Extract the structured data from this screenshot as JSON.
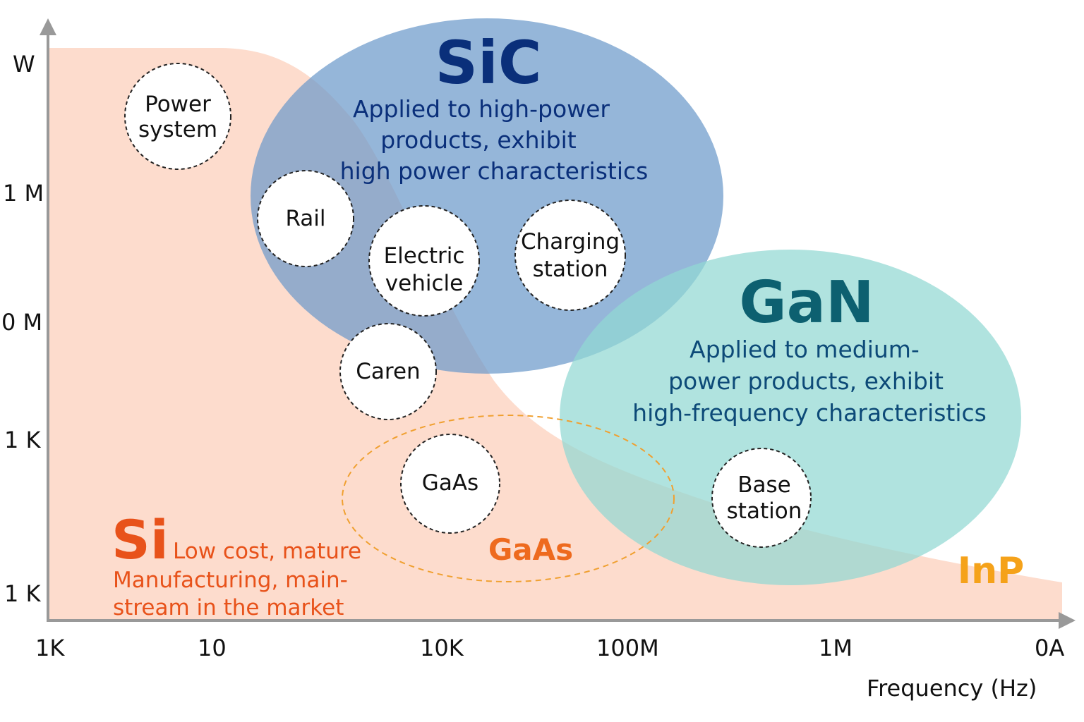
{
  "y_axis": {
    "ticks": [
      "W",
      "1 M",
      "0 M",
      "1 K",
      "1 K"
    ]
  },
  "x_axis": {
    "ticks": [
      "1K",
      "10",
      "10K",
      "100M",
      "1M",
      "0A"
    ],
    "label": "Frequency (Hz)"
  },
  "sic": {
    "title": "SiC",
    "lines": [
      "Applied to high-power",
      "products, exhibit",
      "high power characteristics"
    ],
    "color": "#0a2f7a"
  },
  "gan": {
    "title": "GaN",
    "lines": [
      "Applied to medium-",
      "power products, exhibit",
      "high-frequency characteristics"
    ],
    "color": "#0d6070"
  },
  "si": {
    "title": "Si",
    "lines": [
      "Low cost, mature",
      "Manufacturing, main-",
      "stream in the market"
    ],
    "color": "#e8521a"
  },
  "gaas": {
    "label": "GaAs",
    "color": "#ee6a1e"
  },
  "inp": {
    "label": "InP",
    "color": "#f5a21a"
  },
  "applications": {
    "power_system": [
      "Power",
      "system"
    ],
    "rail": [
      "Rail"
    ],
    "electric_vehicle": [
      "Electric",
      "vehicle"
    ],
    "charging_station": [
      "Charging",
      "station"
    ],
    "caren": [
      "Caren"
    ],
    "gaas": [
      "GaAs"
    ],
    "base_station": [
      "Base",
      "station"
    ]
  }
}
